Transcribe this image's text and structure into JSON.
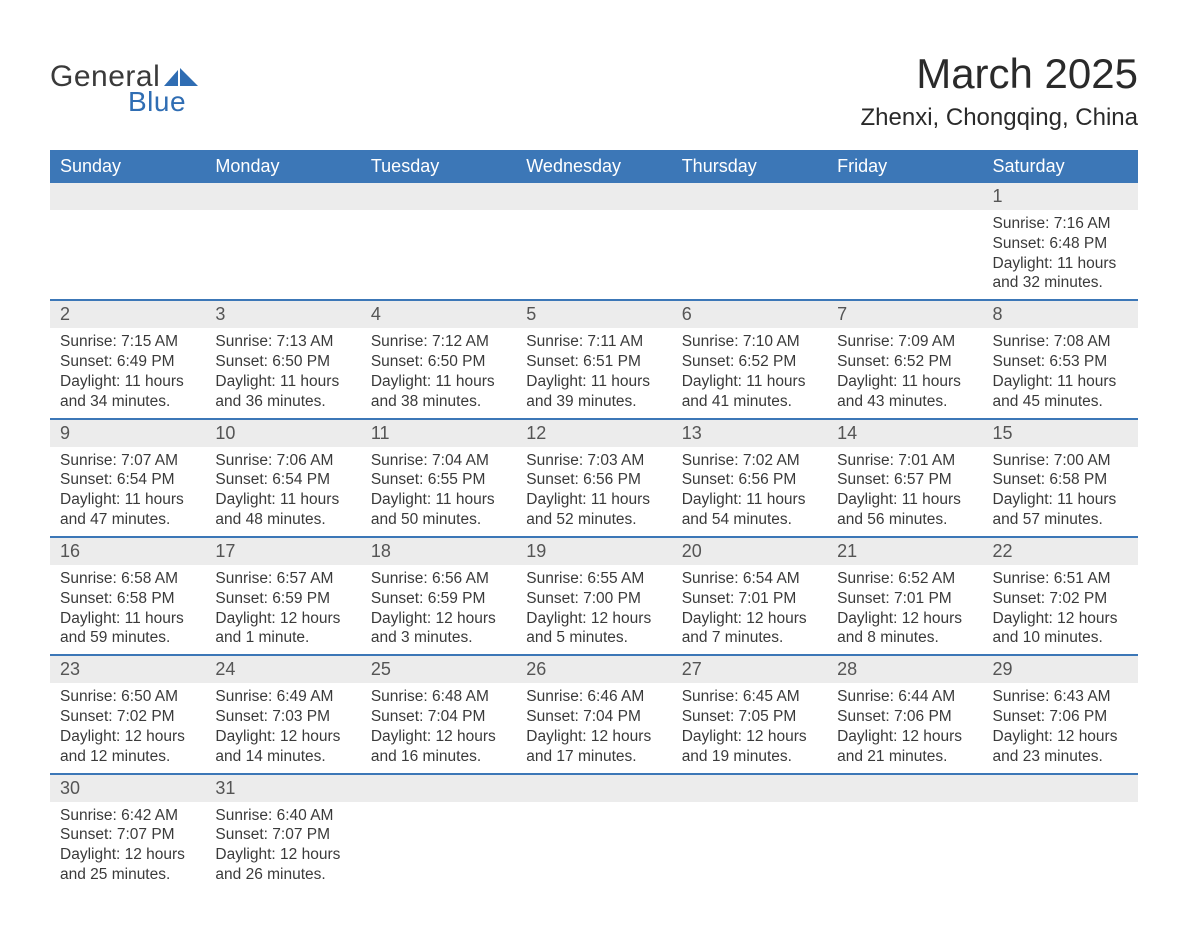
{
  "logo": {
    "text1": "General",
    "text2": "Blue",
    "shape_color": "#2f6db3"
  },
  "title": "March 2025",
  "location": "Zhenxi, Chongqing, China",
  "colors": {
    "header_bg": "#3c77b7",
    "header_text": "#ffffff",
    "daynum_bg": "#ececec",
    "daynum_text": "#555555",
    "body_text": "#3a3a3a",
    "row_border": "#3c77b7"
  },
  "day_headers": [
    "Sunday",
    "Monday",
    "Tuesday",
    "Wednesday",
    "Thursday",
    "Friday",
    "Saturday"
  ],
  "weeks": [
    [
      null,
      null,
      null,
      null,
      null,
      null,
      {
        "n": "1",
        "sunrise": "Sunrise: 7:16 AM",
        "sunset": "Sunset: 6:48 PM",
        "daylight": "Daylight: 11 hours and 32 minutes."
      }
    ],
    [
      {
        "n": "2",
        "sunrise": "Sunrise: 7:15 AM",
        "sunset": "Sunset: 6:49 PM",
        "daylight": "Daylight: 11 hours and 34 minutes."
      },
      {
        "n": "3",
        "sunrise": "Sunrise: 7:13 AM",
        "sunset": "Sunset: 6:50 PM",
        "daylight": "Daylight: 11 hours and 36 minutes."
      },
      {
        "n": "4",
        "sunrise": "Sunrise: 7:12 AM",
        "sunset": "Sunset: 6:50 PM",
        "daylight": "Daylight: 11 hours and 38 minutes."
      },
      {
        "n": "5",
        "sunrise": "Sunrise: 7:11 AM",
        "sunset": "Sunset: 6:51 PM",
        "daylight": "Daylight: 11 hours and 39 minutes."
      },
      {
        "n": "6",
        "sunrise": "Sunrise: 7:10 AM",
        "sunset": "Sunset: 6:52 PM",
        "daylight": "Daylight: 11 hours and 41 minutes."
      },
      {
        "n": "7",
        "sunrise": "Sunrise: 7:09 AM",
        "sunset": "Sunset: 6:52 PM",
        "daylight": "Daylight: 11 hours and 43 minutes."
      },
      {
        "n": "8",
        "sunrise": "Sunrise: 7:08 AM",
        "sunset": "Sunset: 6:53 PM",
        "daylight": "Daylight: 11 hours and 45 minutes."
      }
    ],
    [
      {
        "n": "9",
        "sunrise": "Sunrise: 7:07 AM",
        "sunset": "Sunset: 6:54 PM",
        "daylight": "Daylight: 11 hours and 47 minutes."
      },
      {
        "n": "10",
        "sunrise": "Sunrise: 7:06 AM",
        "sunset": "Sunset: 6:54 PM",
        "daylight": "Daylight: 11 hours and 48 minutes."
      },
      {
        "n": "11",
        "sunrise": "Sunrise: 7:04 AM",
        "sunset": "Sunset: 6:55 PM",
        "daylight": "Daylight: 11 hours and 50 minutes."
      },
      {
        "n": "12",
        "sunrise": "Sunrise: 7:03 AM",
        "sunset": "Sunset: 6:56 PM",
        "daylight": "Daylight: 11 hours and 52 minutes."
      },
      {
        "n": "13",
        "sunrise": "Sunrise: 7:02 AM",
        "sunset": "Sunset: 6:56 PM",
        "daylight": "Daylight: 11 hours and 54 minutes."
      },
      {
        "n": "14",
        "sunrise": "Sunrise: 7:01 AM",
        "sunset": "Sunset: 6:57 PM",
        "daylight": "Daylight: 11 hours and 56 minutes."
      },
      {
        "n": "15",
        "sunrise": "Sunrise: 7:00 AM",
        "sunset": "Sunset: 6:58 PM",
        "daylight": "Daylight: 11 hours and 57 minutes."
      }
    ],
    [
      {
        "n": "16",
        "sunrise": "Sunrise: 6:58 AM",
        "sunset": "Sunset: 6:58 PM",
        "daylight": "Daylight: 11 hours and 59 minutes."
      },
      {
        "n": "17",
        "sunrise": "Sunrise: 6:57 AM",
        "sunset": "Sunset: 6:59 PM",
        "daylight": "Daylight: 12 hours and 1 minute."
      },
      {
        "n": "18",
        "sunrise": "Sunrise: 6:56 AM",
        "sunset": "Sunset: 6:59 PM",
        "daylight": "Daylight: 12 hours and 3 minutes."
      },
      {
        "n": "19",
        "sunrise": "Sunrise: 6:55 AM",
        "sunset": "Sunset: 7:00 PM",
        "daylight": "Daylight: 12 hours and 5 minutes."
      },
      {
        "n": "20",
        "sunrise": "Sunrise: 6:54 AM",
        "sunset": "Sunset: 7:01 PM",
        "daylight": "Daylight: 12 hours and 7 minutes."
      },
      {
        "n": "21",
        "sunrise": "Sunrise: 6:52 AM",
        "sunset": "Sunset: 7:01 PM",
        "daylight": "Daylight: 12 hours and 8 minutes."
      },
      {
        "n": "22",
        "sunrise": "Sunrise: 6:51 AM",
        "sunset": "Sunset: 7:02 PM",
        "daylight": "Daylight: 12 hours and 10 minutes."
      }
    ],
    [
      {
        "n": "23",
        "sunrise": "Sunrise: 6:50 AM",
        "sunset": "Sunset: 7:02 PM",
        "daylight": "Daylight: 12 hours and 12 minutes."
      },
      {
        "n": "24",
        "sunrise": "Sunrise: 6:49 AM",
        "sunset": "Sunset: 7:03 PM",
        "daylight": "Daylight: 12 hours and 14 minutes."
      },
      {
        "n": "25",
        "sunrise": "Sunrise: 6:48 AM",
        "sunset": "Sunset: 7:04 PM",
        "daylight": "Daylight: 12 hours and 16 minutes."
      },
      {
        "n": "26",
        "sunrise": "Sunrise: 6:46 AM",
        "sunset": "Sunset: 7:04 PM",
        "daylight": "Daylight: 12 hours and 17 minutes."
      },
      {
        "n": "27",
        "sunrise": "Sunrise: 6:45 AM",
        "sunset": "Sunset: 7:05 PM",
        "daylight": "Daylight: 12 hours and 19 minutes."
      },
      {
        "n": "28",
        "sunrise": "Sunrise: 6:44 AM",
        "sunset": "Sunset: 7:06 PM",
        "daylight": "Daylight: 12 hours and 21 minutes."
      },
      {
        "n": "29",
        "sunrise": "Sunrise: 6:43 AM",
        "sunset": "Sunset: 7:06 PM",
        "daylight": "Daylight: 12 hours and 23 minutes."
      }
    ],
    [
      {
        "n": "30",
        "sunrise": "Sunrise: 6:42 AM",
        "sunset": "Sunset: 7:07 PM",
        "daylight": "Daylight: 12 hours and 25 minutes."
      },
      {
        "n": "31",
        "sunrise": "Sunrise: 6:40 AM",
        "sunset": "Sunset: 7:07 PM",
        "daylight": "Daylight: 12 hours and 26 minutes."
      },
      null,
      null,
      null,
      null,
      null
    ]
  ]
}
